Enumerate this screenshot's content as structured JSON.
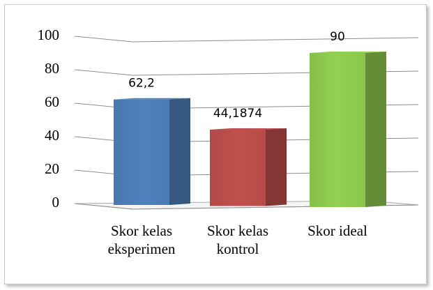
{
  "chart_data": {
    "type": "bar3d",
    "categories": [
      "Skor kelas eksperimen",
      "Skor kelas kontrol",
      "Skor ideal"
    ],
    "values": [
      62.2,
      44.1874,
      90
    ],
    "value_labels": [
      "62,2",
      "44,1874",
      "90"
    ],
    "colors": [
      "#4f81bd",
      "#c0504d",
      "#92d050"
    ],
    "ylim": [
      0,
      100
    ],
    "yticks": [
      0,
      20,
      40,
      60,
      80,
      100
    ],
    "grid": true
  }
}
